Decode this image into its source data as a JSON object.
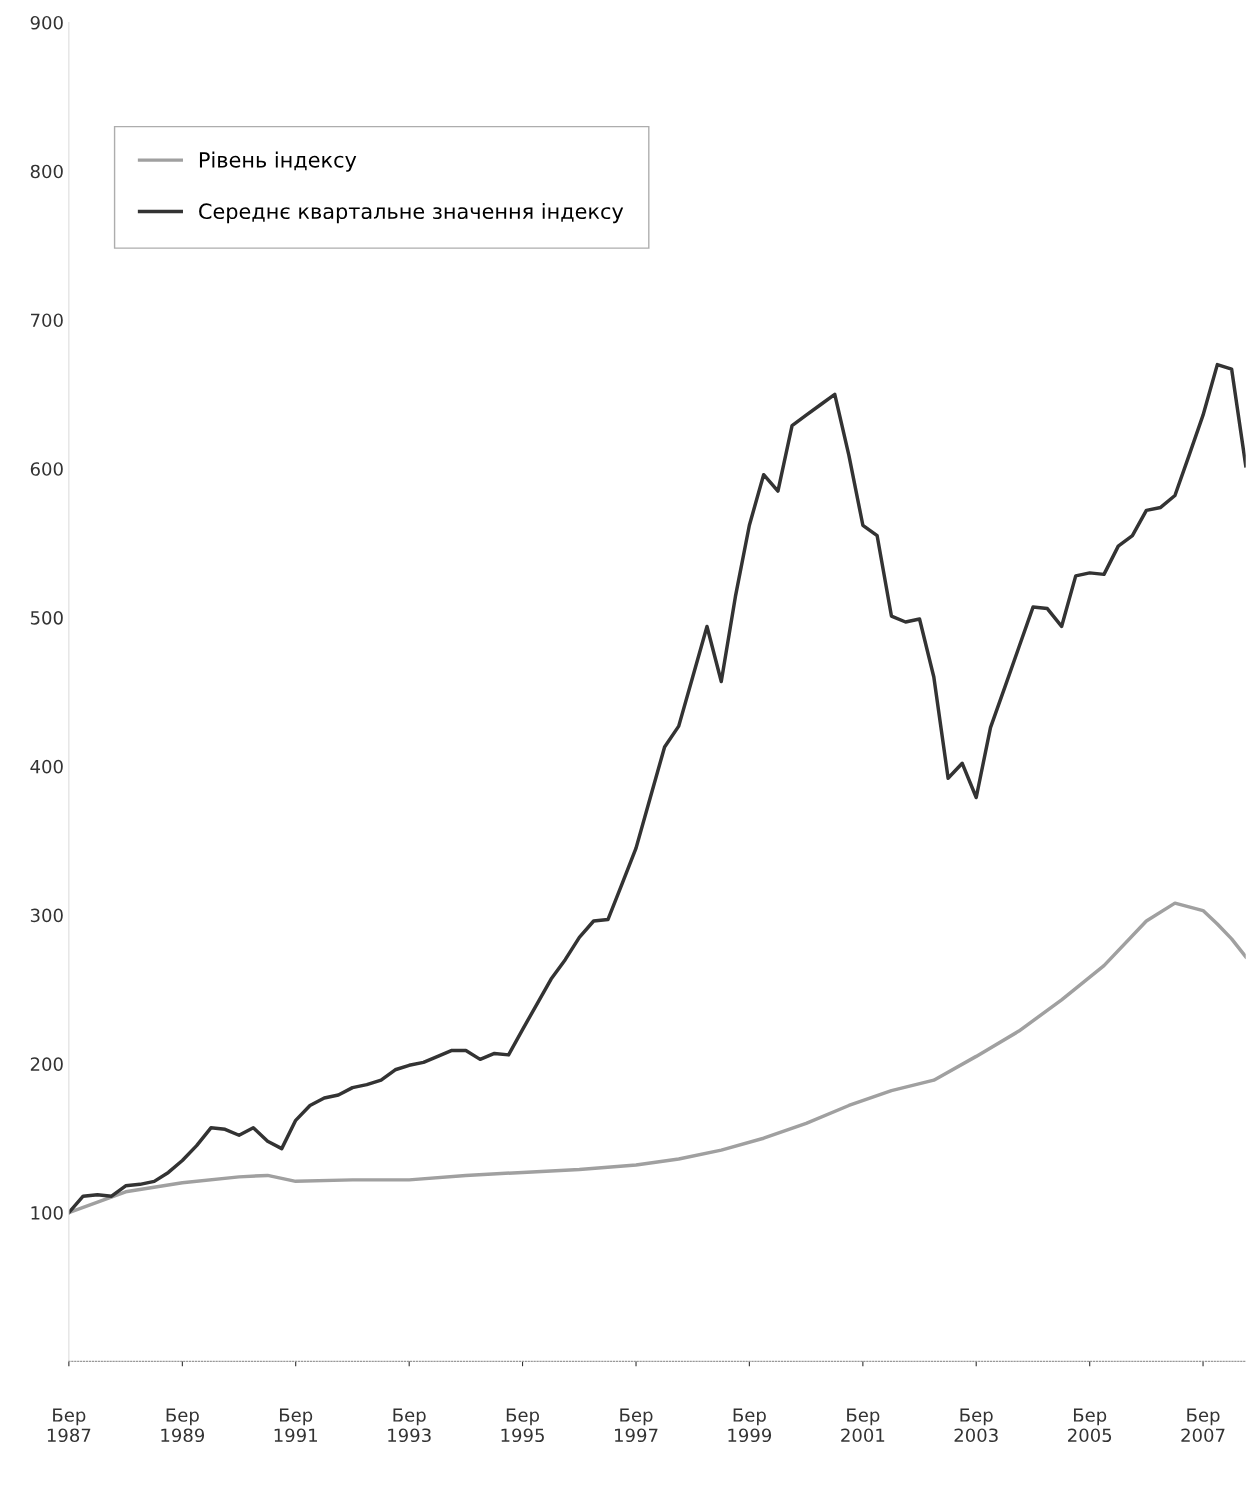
{
  "chart_data": {
    "type": "line",
    "series": [
      {
        "name": "Рівень індексу",
        "color": "#a0a0a0",
        "x": [
          "1987-03",
          "1988-03",
          "1989-03",
          "1990-03",
          "1990-09",
          "1991-03",
          "1992-03",
          "1993-03",
          "1994-03",
          "1995-03",
          "1996-03",
          "1997-03",
          "1997-12",
          "1998-09",
          "1999-06",
          "2000-03",
          "2000-12",
          "2001-09",
          "2002-06",
          "2003-03",
          "2003-12",
          "2004-09",
          "2005-06",
          "2006-03",
          "2006-09",
          "2007-03",
          "2007-06",
          "2007-09",
          "2007-12"
        ],
        "values": [
          100,
          114,
          120,
          124,
          125,
          121,
          122,
          122,
          125,
          127,
          129,
          132,
          136,
          142,
          150,
          160,
          172,
          182,
          189,
          205,
          222,
          243,
          266,
          296,
          308,
          303,
          294,
          284,
          272
        ]
      },
      {
        "name": "Середнє квартальне значення індексу",
        "color": "#333333",
        "x": [
          "1987-03",
          "1987-06",
          "1987-09",
          "1987-12",
          "1988-03",
          "1988-06",
          "1988-09",
          "1988-12",
          "1989-03",
          "1989-06",
          "1989-09",
          "1989-12",
          "1990-03",
          "1990-06",
          "1990-09",
          "1990-12",
          "1991-03",
          "1991-06",
          "1991-09",
          "1991-12",
          "1992-03",
          "1992-06",
          "1992-09",
          "1992-12",
          "1993-03",
          "1993-06",
          "1993-09",
          "1993-12",
          "1994-03",
          "1994-06",
          "1994-09",
          "1994-12",
          "1995-03",
          "1995-06",
          "1995-09",
          "1995-12",
          "1996-03",
          "1996-06",
          "1996-09",
          "1996-12",
          "1997-03",
          "1997-06",
          "1997-09",
          "1997-12",
          "1998-03",
          "1998-06",
          "1998-09",
          "1998-12",
          "1999-03",
          "1999-06",
          "1999-09",
          "1999-12",
          "2000-03",
          "2000-06",
          "2000-09",
          "2000-12",
          "2001-03",
          "2001-06",
          "2001-09",
          "2001-12",
          "2002-03",
          "2002-06",
          "2002-09",
          "2002-12",
          "2003-03",
          "2003-06",
          "2003-09",
          "2003-12",
          "2004-03",
          "2004-06",
          "2004-09",
          "2004-12",
          "2005-03",
          "2005-06",
          "2005-09",
          "2005-12",
          "2006-03",
          "2006-06",
          "2006-09",
          "2006-12",
          "2007-03",
          "2007-06",
          "2007-09",
          "2007-12"
        ],
        "values": [
          100,
          111,
          112,
          111,
          118,
          119,
          121,
          127,
          135,
          145,
          157,
          156,
          152,
          157,
          148,
          143,
          162,
          172,
          177,
          179,
          184,
          186,
          189,
          196,
          199,
          201,
          205,
          209,
          209,
          203,
          207,
          206,
          223,
          240,
          257,
          270,
          285,
          296,
          297,
          321,
          345,
          379,
          413,
          427,
          460,
          494,
          457,
          514,
          562,
          596,
          585,
          629,
          636,
          643,
          650,
          609,
          562,
          555,
          501,
          497,
          499,
          460,
          392,
          402,
          379,
          426,
          453,
          480,
          507,
          506,
          494,
          528,
          530,
          529,
          548,
          555,
          572,
          574,
          582,
          609,
          636,
          670,
          667,
          602
        ]
      }
    ],
    "xlim": [
      "1987-03",
      "2007-12"
    ],
    "xticks": [
      {
        "value": "1987-03",
        "label": "Бер\n1987"
      },
      {
        "value": "1989-03",
        "label": "Бер\n1989"
      },
      {
        "value": "1991-03",
        "label": "Бер\n1991"
      },
      {
        "value": "1993-03",
        "label": "Бер\n1993"
      },
      {
        "value": "1995-03",
        "label": "Бер\n1995"
      },
      {
        "value": "1997-03",
        "label": "Бер\n1997"
      },
      {
        "value": "1999-03",
        "label": "Бер\n1999"
      },
      {
        "value": "2001-03",
        "label": "Бер\n2001"
      },
      {
        "value": "2003-03",
        "label": "Бер\n2003"
      },
      {
        "value": "2005-03",
        "label": "Бер\n2005"
      },
      {
        "value": "2007-03",
        "label": "Бер\n2007"
      }
    ],
    "ylim": [
      0,
      900
    ],
    "yticks": [
      100,
      200,
      300,
      400,
      500,
      600,
      700,
      800,
      900
    ],
    "grid": false,
    "legend": "top left",
    "marker": "none",
    "line_style": "solid"
  }
}
